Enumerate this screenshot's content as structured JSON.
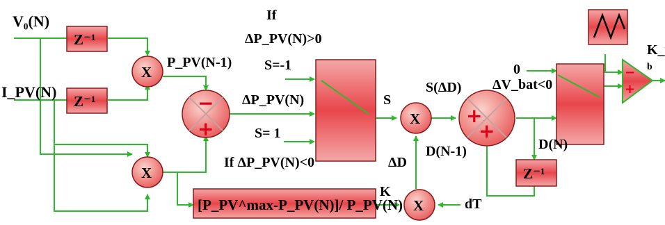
{
  "labels": {
    "v0": "V₀(N)",
    "ipv": "I_PV(N)",
    "ppv_prev": "P_PV(N-1)",
    "if_top_1": "If",
    "if_top_2": "ΔP_PV(N)>0",
    "s_minus": "S=-1",
    "delta_ppv": "ΔP_PV(N)",
    "s_plus": "S= 1",
    "if_bottom": "If ΔP_PV(N)<0",
    "s": "S",
    "s_ad": "S(ΔD)",
    "delta_d": "ΔD",
    "d_prev": "D(N-1)",
    "zero": "0",
    "dvbat": "ΔV_bat<0",
    "d_n": "D(N)",
    "k": "K",
    "dt": "dT",
    "kv": "K_v",
    "b": "b"
  },
  "blocks": {
    "z_inv_1": "Z⁻¹",
    "z_inv_2": "Z⁻¹",
    "z_inv_3": "Z⁻¹",
    "formula": "[P_PV^max-P_PV(N)]/ P_PV(N)",
    "mult_symbol": "X",
    "plus": "+",
    "minus": "−"
  }
}
